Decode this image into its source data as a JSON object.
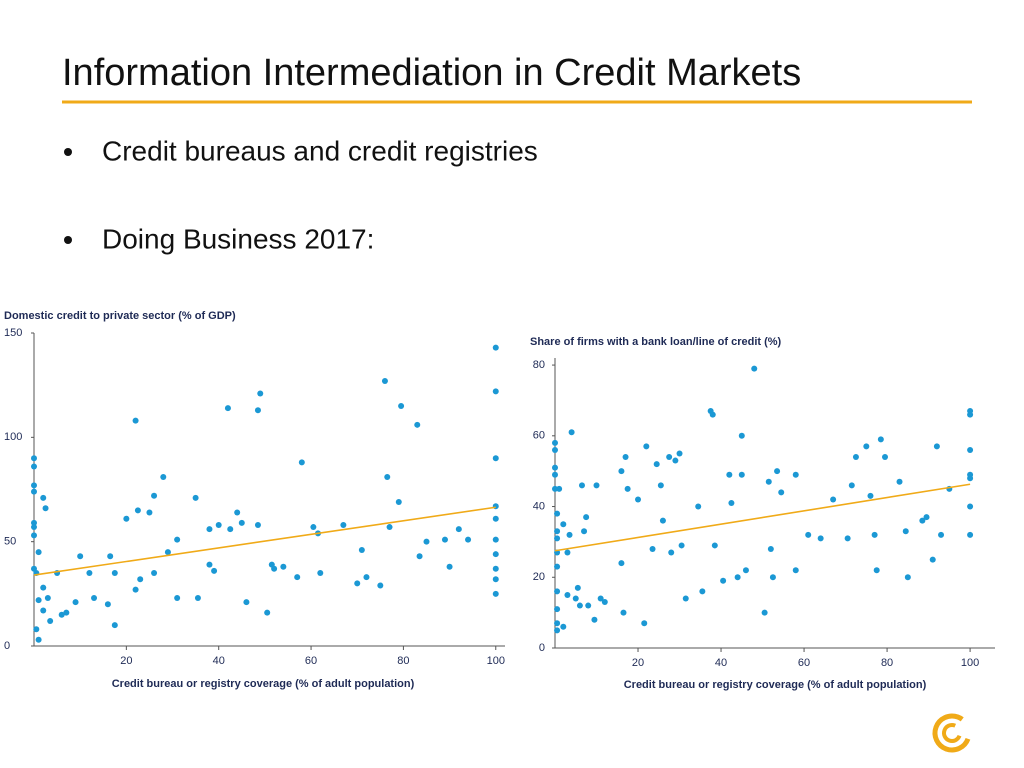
{
  "slide": {
    "title": "Information Intermediation in Credit Markets",
    "bullets": [
      "Credit bureaus and credit registries",
      "Doing Business 2017:"
    ]
  },
  "chart_data": [
    {
      "type": "scatter",
      "ylabel": "Domestic credit to private sector (% of GDP)",
      "xlabel": "Credit bureau or registry coverage (% of adult population)",
      "xlim": [
        0,
        102
      ],
      "ylim": [
        0,
        150
      ],
      "xticks": [
        20,
        40,
        60,
        80,
        100
      ],
      "yticks": [
        0,
        50,
        100,
        150
      ],
      "color": "#1b98d4",
      "x": [
        0,
        0,
        0,
        0,
        0,
        0,
        0,
        0,
        0.5,
        1,
        2,
        2.5,
        1,
        2,
        0.5,
        1,
        2,
        3,
        3.5,
        5,
        6,
        7,
        9,
        10,
        12,
        13,
        16,
        16.5,
        17.5,
        17.5,
        20,
        22,
        22,
        22.5,
        23,
        25,
        26,
        26,
        28,
        29,
        31,
        31,
        35,
        35.5,
        38,
        38,
        39,
        40,
        42,
        42.5,
        44,
        45,
        46,
        48.5,
        48.5,
        49,
        50.5,
        51.5,
        52,
        54,
        57,
        58,
        60.5,
        61.5,
        62,
        67,
        70,
        71,
        72,
        75,
        76,
        76.5,
        77,
        79,
        79.5,
        83,
        83.5,
        85,
        89,
        90,
        92,
        94,
        100,
        100,
        100,
        100,
        100,
        100,
        100,
        100,
        100,
        100
      ],
      "values": [
        90,
        86,
        77,
        74,
        59,
        57,
        53,
        37,
        35,
        45,
        71,
        66,
        22,
        17,
        8,
        3,
        28,
        23,
        12,
        35,
        15,
        16,
        21,
        43,
        35,
        23,
        20,
        43,
        10,
        35,
        61,
        108,
        27,
        65,
        32,
        64,
        72,
        35,
        81,
        45,
        51,
        23,
        71,
        23,
        56,
        39,
        36,
        58,
        114,
        56,
        64,
        59,
        21,
        113,
        58,
        121,
        16,
        39,
        37,
        38,
        33,
        88,
        57,
        54,
        35,
        58,
        30,
        46,
        33,
        29,
        127,
        81,
        57,
        69,
        115,
        106,
        43,
        50,
        51,
        38,
        56,
        51,
        143,
        122,
        90,
        67,
        61,
        51,
        44,
        37,
        32,
        25
      ],
      "trend": {
        "x": [
          0,
          100
        ],
        "values": [
          34,
          66.5
        ],
        "color": "#f0aa18"
      }
    },
    {
      "type": "scatter",
      "ylabel": "Share of firms with a bank loan/line of credit (%)",
      "xlabel": "Credit bureau or registry coverage (% of adult population)",
      "xlim": [
        0,
        106
      ],
      "ylim": [
        0,
        82
      ],
      "xticks": [
        20,
        40,
        60,
        80,
        100
      ],
      "yticks": [
        0,
        20,
        40,
        60,
        80
      ],
      "color": "#1b98d4",
      "x": [
        0,
        0,
        0,
        0,
        0,
        0.5,
        0.5,
        0.5,
        0.5,
        0.5,
        0.5,
        0.5,
        0.5,
        0.5,
        1,
        2,
        3,
        2,
        3,
        3.5,
        4,
        5,
        5.5,
        6,
        6.5,
        7,
        7.5,
        8,
        9.5,
        10,
        11,
        12,
        16,
        16,
        16.5,
        17,
        17.5,
        20,
        22,
        21.5,
        23.5,
        24.5,
        25.5,
        26,
        27.5,
        28,
        29,
        30,
        30.5,
        31.5,
        34.5,
        35.5,
        37.5,
        38,
        38.5,
        40.5,
        42,
        42.5,
        44,
        45,
        45,
        46,
        48,
        50.5,
        51.5,
        52,
        52.5,
        53.5,
        54.5,
        58,
        58,
        61,
        64,
        67,
        70.5,
        71.5,
        72.5,
        75,
        76,
        77,
        77.5,
        78.5,
        79.5,
        83,
        84.5,
        85,
        88.5,
        89.5,
        91,
        92,
        93,
        95,
        100,
        100,
        100,
        100,
        100,
        100,
        100
      ],
      "values": [
        58,
        56,
        51,
        49,
        45,
        38,
        33,
        31,
        27,
        23,
        16,
        11,
        7,
        5,
        45,
        35,
        15,
        6,
        27,
        32,
        61,
        14,
        17,
        12,
        46,
        33,
        37,
        12,
        8,
        46,
        14,
        13,
        50,
        24,
        10,
        54,
        45,
        42,
        57,
        7,
        28,
        52,
        46,
        36,
        54,
        27,
        53,
        55,
        29,
        14,
        40,
        16,
        67,
        66,
        29,
        19,
        49,
        41,
        20,
        60,
        49,
        22,
        79,
        10,
        47,
        28,
        20,
        50,
        44,
        49,
        22,
        32,
        31,
        42,
        31,
        46,
        54,
        57,
        43,
        32,
        22,
        59,
        54,
        47,
        33,
        20,
        36,
        37,
        25,
        57,
        32,
        45,
        67,
        66,
        56,
        48,
        49,
        40,
        32
      ],
      "trend": {
        "x": [
          0,
          100
        ],
        "values": [
          27.5,
          46.3
        ],
        "color": "#f0aa18"
      }
    }
  ]
}
